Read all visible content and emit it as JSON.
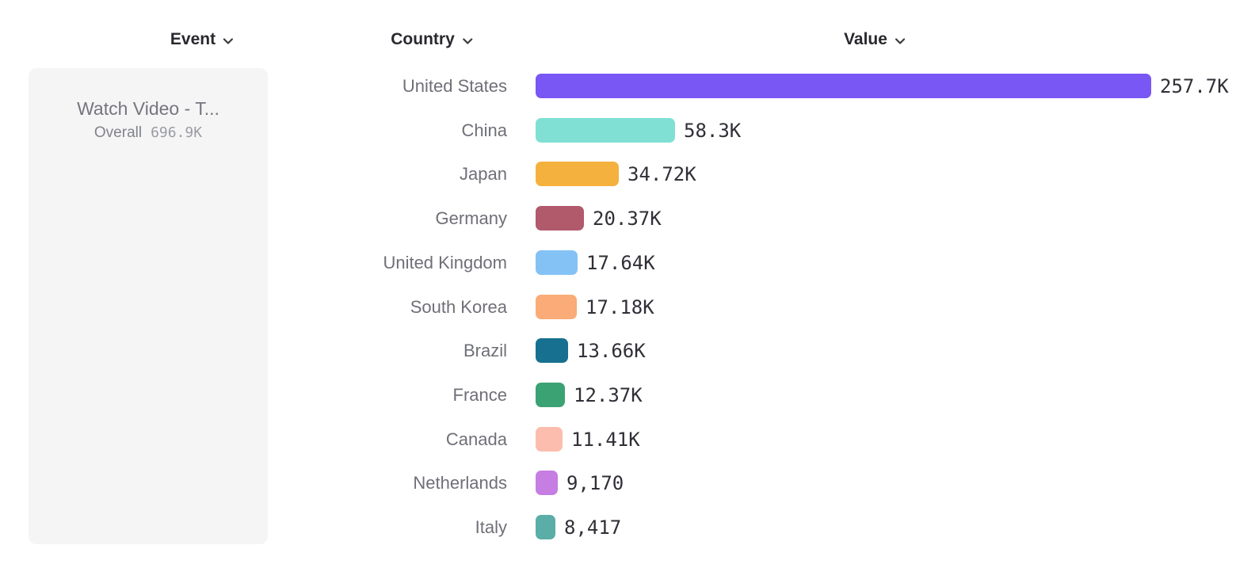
{
  "headers": {
    "event": "Event",
    "country": "Country",
    "value": "Value"
  },
  "event_panel": {
    "title": "Watch Video - T...",
    "overall_label": "Overall",
    "overall_value": "696.9K"
  },
  "chart_data": {
    "type": "bar",
    "orientation": "horizontal",
    "categories": [
      "United States",
      "China",
      "Japan",
      "Germany",
      "United Kingdom",
      "South Korea",
      "Brazil",
      "France",
      "Canada",
      "Netherlands",
      "Italy"
    ],
    "values": [
      257700,
      58300,
      34720,
      20370,
      17640,
      17180,
      13660,
      12370,
      11410,
      9170,
      8417
    ],
    "value_labels": [
      "257.7K",
      "58.3K",
      "34.72K",
      "20.37K",
      "17.64K",
      "17.18K",
      "13.66K",
      "12.37K",
      "11.41K",
      "9,170",
      "8,417"
    ],
    "bar_colors": [
      "#7857F5",
      "#7FE0D3",
      "#F5B13D",
      "#B05A6C",
      "#84C2F5",
      "#FAAB77",
      "#17708F",
      "#3BA273",
      "#FDBDAE",
      "#C67EE2",
      "#5BAEA7"
    ],
    "xlim": [
      0,
      257700
    ],
    "grid": false,
    "legend": "none"
  },
  "colors": {
    "event_card_bg": "#f5f5f6",
    "header_text": "#28282e",
    "country_label_text": "#6f6f78",
    "value_label_text": "#2f2f37"
  },
  "icons": {
    "event_header": "chevron-down-icon",
    "country_header": "chevron-down-icon",
    "value_header": "chevron-down-icon"
  }
}
